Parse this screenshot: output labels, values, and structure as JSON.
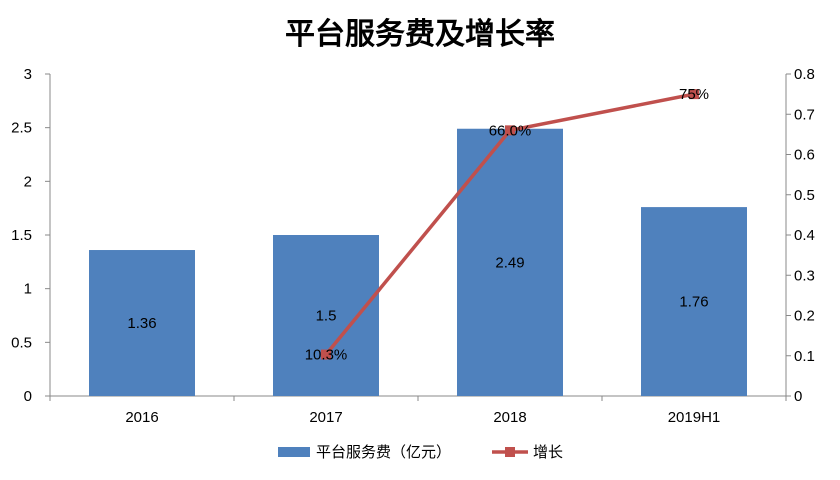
{
  "chart_data": {
    "type": "bar",
    "title": "平台服务费及增长率",
    "categories": [
      "2016",
      "2017",
      "2018",
      "2019H1"
    ],
    "series": [
      {
        "name": "平台服务费（亿元）",
        "type": "bar",
        "axis": "left",
        "color": "#4F81BD",
        "values": [
          1.36,
          1.5,
          2.49,
          1.76
        ],
        "labels": [
          "1.36",
          "1.5",
          "2.49",
          "1.76"
        ]
      },
      {
        "name": "增长",
        "type": "line",
        "axis": "right",
        "color": "#C0504D",
        "values": [
          null,
          0.103,
          0.66,
          0.75
        ],
        "labels": [
          "",
          "10.3%",
          "66.0%",
          "75%"
        ]
      }
    ],
    "ylim": [
      0,
      3
    ],
    "yticks": [
      "0",
      "0.5",
      "1",
      "1.5",
      "2",
      "2.5",
      "3"
    ],
    "ylim_right": [
      0,
      0.8
    ],
    "yticks_right": [
      "0",
      "0.1",
      "0.2",
      "0.3",
      "0.4",
      "0.5",
      "0.6",
      "0.7",
      "0.8"
    ],
    "legend": "bottom",
    "grid": false
  }
}
